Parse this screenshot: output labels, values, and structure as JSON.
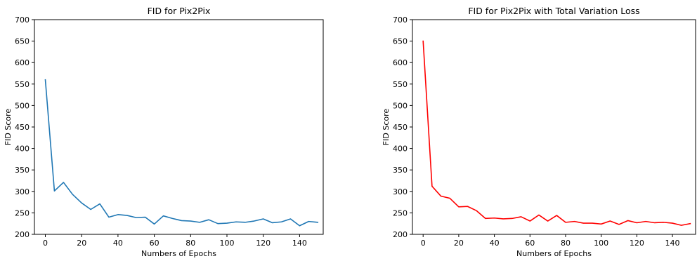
{
  "chart_data": [
    {
      "type": "line",
      "title": "FID for Pix2Pix",
      "xlabel": "Numbers of Epochs",
      "ylabel": "FID Score",
      "xlim": [
        -6,
        153
      ],
      "ylim": [
        200,
        700
      ],
      "xticks": [
        0,
        20,
        40,
        60,
        80,
        100,
        120,
        140
      ],
      "yticks": [
        200,
        250,
        300,
        350,
        400,
        450,
        500,
        550,
        600,
        650,
        700
      ],
      "grid": false,
      "series": [
        {
          "color": "#1f77b4",
          "x": [
            0,
            5,
            10,
            15,
            20,
            25,
            30,
            35,
            40,
            45,
            50,
            55,
            60,
            65,
            70,
            75,
            80,
            85,
            90,
            95,
            100,
            105,
            110,
            115,
            120,
            125,
            130,
            135,
            140,
            145,
            150
          ],
          "values": [
            560,
            301,
            321,
            293,
            273,
            258,
            271,
            240,
            246,
            244,
            239,
            240,
            224,
            243,
            237,
            232,
            231,
            228,
            234,
            225,
            226,
            229,
            228,
            231,
            236,
            227,
            229,
            236,
            220,
            230,
            228
          ]
        }
      ]
    },
    {
      "type": "line",
      "title": "FID for Pix2Pix with Total Variation Loss",
      "xlabel": "Numbers of Epochs",
      "ylabel": "FID Score",
      "xlim": [
        -6,
        153
      ],
      "ylim": [
        200,
        700
      ],
      "xticks": [
        0,
        20,
        40,
        60,
        80,
        100,
        120,
        140
      ],
      "yticks": [
        200,
        250,
        300,
        350,
        400,
        450,
        500,
        550,
        600,
        650,
        700
      ],
      "grid": false,
      "series": [
        {
          "color": "#ff0000",
          "x": [
            0,
            5,
            10,
            15,
            20,
            25,
            30,
            35,
            40,
            45,
            50,
            55,
            60,
            65,
            70,
            75,
            80,
            85,
            90,
            95,
            100,
            105,
            110,
            115,
            120,
            125,
            130,
            135,
            140,
            145,
            150
          ],
          "values": [
            650,
            312,
            289,
            284,
            264,
            265,
            255,
            237,
            238,
            236,
            237,
            241,
            231,
            245,
            231,
            244,
            228,
            230,
            226,
            226,
            224,
            231,
            223,
            232,
            227,
            230,
            227,
            228,
            226,
            221,
            225
          ]
        }
      ]
    }
  ]
}
